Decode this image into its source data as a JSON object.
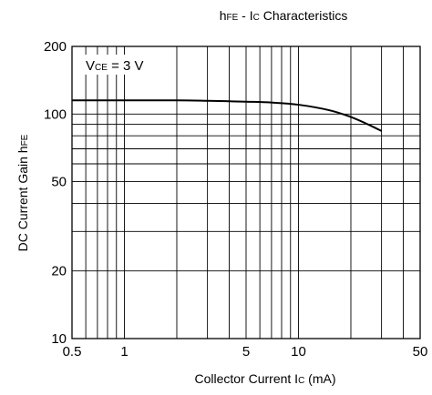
{
  "chart_data": {
    "type": "line",
    "title": {
      "main": "h",
      "main_sub": "FE",
      "sep": " - I",
      "sep_sub": "C",
      "rest": " Characteristics"
    },
    "xlabel": {
      "main": "Collector Current I",
      "sub": "C",
      "rest": " (mA)"
    },
    "ylabel": {
      "main": "DC Current Gain h",
      "sub": "FE"
    },
    "annotation": {
      "main": "V",
      "sub": "CE",
      "rest": " = 3 V"
    },
    "x_scale": "log",
    "y_scale": "log",
    "xlim": [
      0.5,
      50
    ],
    "ylim": [
      10,
      200
    ],
    "x_ticks": [
      {
        "value": 0.5,
        "label": "0.5"
      },
      {
        "value": 1,
        "label": "1"
      },
      {
        "value": 5,
        "label": "5"
      },
      {
        "value": 10,
        "label": "10"
      },
      {
        "value": 50,
        "label": "50"
      }
    ],
    "y_ticks": [
      {
        "value": 10,
        "label": "10"
      },
      {
        "value": 20,
        "label": "20"
      },
      {
        "value": 50,
        "label": "50"
      },
      {
        "value": 100,
        "label": "100"
      },
      {
        "value": 200,
        "label": "200"
      }
    ],
    "x_grid": [
      0.6,
      0.7,
      0.8,
      0.9,
      1,
      2,
      3,
      4,
      5,
      6,
      7,
      8,
      9,
      10,
      20,
      30,
      40
    ],
    "y_grid": [
      20,
      30,
      40,
      50,
      60,
      70,
      80,
      90,
      100
    ],
    "grid": true,
    "series": [
      {
        "x": [
          0.5,
          1,
          2,
          3,
          5,
          7,
          10,
          15,
          20,
          25,
          30
        ],
        "y": [
          115,
          115,
          115,
          114.5,
          113.5,
          112.5,
          110,
          104,
          97,
          90,
          84
        ]
      }
    ]
  }
}
